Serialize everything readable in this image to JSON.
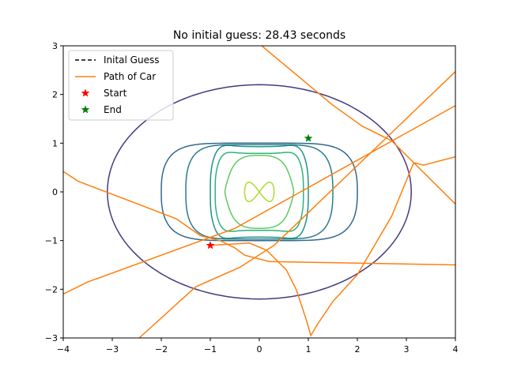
{
  "chart_data": {
    "type": "line",
    "title": "No initial guess: 28.43 seconds",
    "xlabel": "",
    "ylabel": "",
    "xlim": [
      -4,
      4
    ],
    "ylim": [
      -3,
      3
    ],
    "xticks": [
      -4,
      -3,
      -2,
      -1,
      0,
      1,
      2,
      3,
      4
    ],
    "yticks": [
      -3,
      -2,
      -1,
      0,
      1,
      2,
      3
    ],
    "xtick_labels": [
      "−4",
      "−3",
      "−2",
      "−1",
      "0",
      "1",
      "2",
      "3",
      "4"
    ],
    "ytick_labels": [
      "−3",
      "−2",
      "−1",
      "0",
      "1",
      "2",
      "3"
    ],
    "grid": false,
    "legend_position": "top-left",
    "legend": [
      {
        "label": "Inital Guess",
        "kind": "dashed-line",
        "color": "#000000"
      },
      {
        "label": "Path of Car",
        "kind": "line",
        "color": "#ff7f0e"
      },
      {
        "label": "Start",
        "kind": "star",
        "color": "#ff0000"
      },
      {
        "label": "End",
        "kind": "star",
        "color": "#008000"
      }
    ],
    "series": [
      {
        "name": "Path of Car",
        "color": "#ff7f0e",
        "wrapped": true,
        "points": [
          [
            -1.0,
            -1.1
          ],
          [
            -0.2,
            -1.05
          ],
          [
            0.15,
            -1.2
          ],
          [
            0.55,
            -1.6
          ],
          [
            0.75,
            -2.0
          ],
          [
            0.95,
            -2.6
          ],
          [
            1.05,
            -2.95
          ],
          [
            1.2,
            -2.7
          ],
          [
            1.5,
            -2.25
          ],
          [
            2.0,
            -1.7
          ],
          [
            2.7,
            -0.5
          ],
          [
            3.15,
            0.6
          ],
          [
            3.35,
            0.55
          ],
          [
            4.0,
            0.72
          ]
        ],
        "wrap_segments": [
          [
            [
              -4.0,
              0.42
            ],
            [
              -3.7,
              0.22
            ],
            [
              -1.7,
              -0.55
            ],
            [
              -1.2,
              -0.9
            ],
            [
              -0.8,
              -1.0
            ],
            [
              -0.5,
              -1.15
            ],
            [
              -0.3,
              -1.3
            ],
            [
              0.2,
              -1.43
            ],
            [
              4.0,
              -1.5
            ]
          ],
          [
            [
              -4.0,
              -2.1
            ],
            [
              -3.5,
              -1.85
            ],
            [
              -0.5,
              -0.75
            ],
            [
              4.0,
              1.77
            ]
          ],
          [
            [
              -2.45,
              -3.0
            ],
            [
              -1.3,
              -1.95
            ],
            [
              -0.4,
              -1.55
            ],
            [
              0.3,
              -1.1
            ],
            [
              4.0,
              2.47
            ]
          ],
          [
            [
              0.05,
              3.0
            ],
            [
              1.0,
              2.2
            ],
            [
              1.5,
              1.78
            ],
            [
              2.1,
              1.35
            ],
            [
              2.7,
              1.05
            ],
            [
              4.0,
              -0.25
            ]
          ]
        ]
      },
      {
        "name": "Start",
        "marker": "star",
        "color": "#ff0000",
        "points": [
          [
            -1.0,
            -1.1
          ]
        ]
      },
      {
        "name": "End",
        "marker": "star",
        "color": "#008000",
        "points": [
          [
            1.0,
            1.1
          ]
        ]
      }
    ],
    "contours": [
      {
        "level": 1,
        "color": "#443983",
        "shape": "ellipse",
        "rx": 3.1,
        "ry": 2.2
      },
      {
        "level": 2,
        "color": "#31688e",
        "shape": "stadium",
        "half_width": 2.0,
        "half_height": 1.0
      },
      {
        "level": 3,
        "color": "#287c8e",
        "shape": "stadium",
        "half_width": 1.5,
        "half_height": 0.97
      },
      {
        "level": 4,
        "color": "#21918c",
        "shape": "wavy",
        "half_width": 1.0,
        "half_height": 1.0
      },
      {
        "level": 5,
        "color": "#2db27d",
        "shape": "wavy",
        "half_width": 0.9,
        "half_height": 0.85
      },
      {
        "level": 6,
        "color": "#5ec962",
        "shape": "lobed",
        "half_width": 0.7,
        "half_height": 0.75
      },
      {
        "level": 7,
        "color": "#aadc32",
        "shape": "bowtie",
        "half_width": 0.3,
        "half_height": 0.2
      }
    ]
  }
}
